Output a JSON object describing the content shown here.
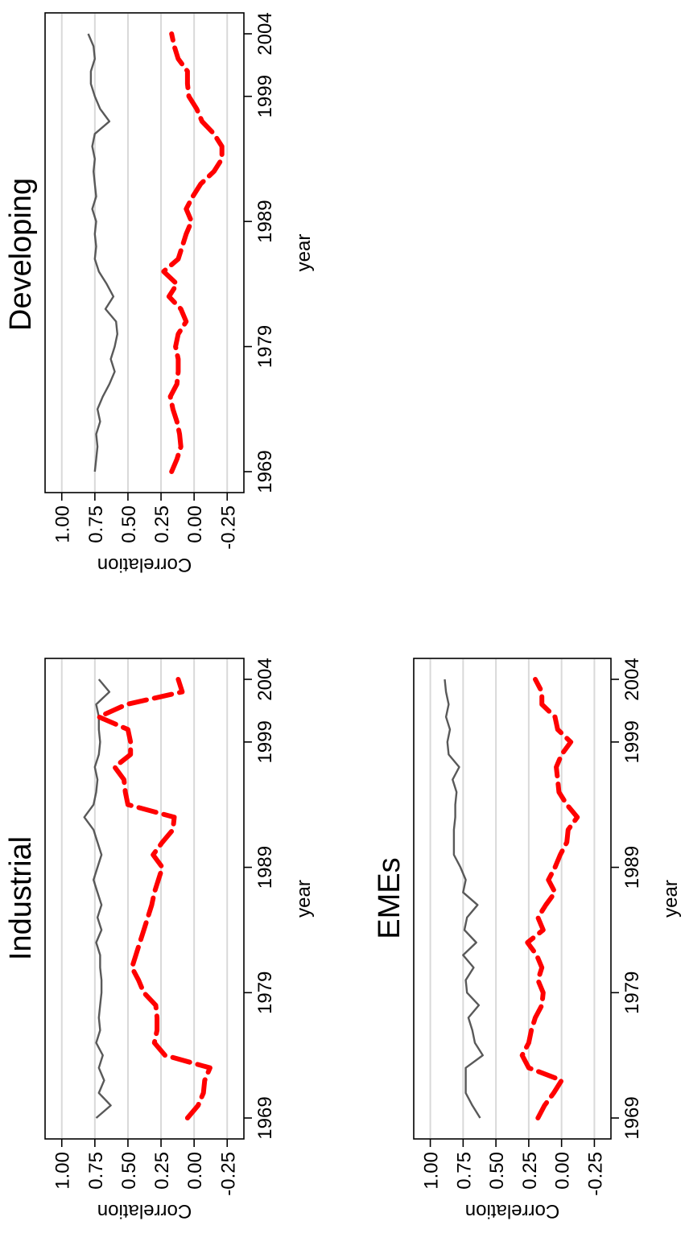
{
  "colors": {
    "solid": "#595959",
    "dashed": "#ff0000",
    "grid": "#d9d9d9"
  },
  "chart_data": [
    {
      "type": "line",
      "title": "Industrial",
      "xlabel": "year",
      "ylabel": "Correlation",
      "xlim": [
        1969,
        2004
      ],
      "ylim": [
        -0.25,
        1.0
      ],
      "xticks": [
        "1969",
        "1979",
        "1989",
        "1999",
        "2004"
      ],
      "yticks": [
        "1.00",
        "0.75",
        "0.50",
        "0.25",
        "0.00",
        "-0.25"
      ],
      "grid": true,
      "x": [
        1969,
        1970,
        1971,
        1972,
        1973,
        1974,
        1975,
        1976,
        1977,
        1978,
        1979,
        1980,
        1981,
        1982,
        1983,
        1984,
        1985,
        1986,
        1987,
        1988,
        1989,
        1990,
        1991,
        1992,
        1993,
        1994,
        1995,
        1996,
        1997,
        1998,
        1999,
        2000,
        2001,
        2002,
        2003,
        2004
      ],
      "series": [
        {
          "style": "solid",
          "values": [
            0.74,
            0.63,
            0.72,
            0.68,
            0.72,
            0.69,
            0.74,
            0.71,
            0.72,
            0.71,
            0.7,
            0.7,
            0.71,
            0.71,
            0.74,
            0.7,
            0.73,
            0.7,
            0.73,
            0.76,
            0.73,
            0.7,
            0.73,
            0.76,
            0.83,
            0.76,
            0.74,
            0.73,
            0.75,
            0.72,
            0.71,
            0.72,
            0.72,
            0.74,
            0.64,
            0.72
          ]
        },
        {
          "style": "dashed",
          "values": [
            0.05,
            -0.03,
            -0.07,
            -0.08,
            -0.12,
            0.22,
            0.3,
            0.28,
            0.28,
            0.29,
            0.38,
            0.42,
            0.47,
            0.44,
            0.41,
            0.38,
            0.35,
            0.32,
            0.3,
            0.27,
            0.24,
            0.31,
            0.24,
            0.16,
            0.15,
            0.5,
            0.52,
            0.53,
            0.6,
            0.48,
            0.48,
            0.5,
            0.72,
            0.51,
            0.09,
            0.12
          ]
        }
      ]
    },
    {
      "type": "line",
      "title": "Developing",
      "xlabel": "year",
      "ylabel": "Correlation",
      "xlim": [
        1969,
        2004
      ],
      "ylim": [
        -0.25,
        1.0
      ],
      "xticks": [
        "1969",
        "1979",
        "1989",
        "1999",
        "2004"
      ],
      "yticks": [
        "1.00",
        "0.75",
        "0.50",
        "0.25",
        "0.00",
        "-0.25"
      ],
      "grid": true,
      "x": [
        1969,
        1970,
        1971,
        1972,
        1973,
        1974,
        1975,
        1976,
        1977,
        1978,
        1979,
        1980,
        1981,
        1982,
        1983,
        1984,
        1985,
        1986,
        1987,
        1988,
        1989,
        1990,
        1991,
        1992,
        1993,
        1994,
        1995,
        1996,
        1997,
        1998,
        1999,
        2000,
        2001,
        2002,
        2003,
        2004
      ],
      "series": [
        {
          "style": "solid",
          "values": [
            0.75,
            0.74,
            0.73,
            0.74,
            0.71,
            0.73,
            0.69,
            0.64,
            0.6,
            0.63,
            0.6,
            0.58,
            0.59,
            0.67,
            0.61,
            0.66,
            0.72,
            0.75,
            0.74,
            0.75,
            0.74,
            0.77,
            0.74,
            0.75,
            0.76,
            0.75,
            0.77,
            0.75,
            0.64,
            0.71,
            0.75,
            0.78,
            0.78,
            0.75,
            0.76,
            0.8
          ]
        },
        {
          "style": "dashed",
          "values": [
            0.17,
            0.13,
            0.1,
            0.11,
            0.13,
            0.16,
            0.18,
            0.13,
            0.12,
            0.12,
            0.14,
            0.12,
            0.06,
            0.1,
            0.19,
            0.13,
            0.23,
            0.12,
            0.09,
            0.06,
            0.02,
            0.06,
            0.01,
            -0.05,
            -0.15,
            -0.21,
            -0.21,
            -0.15,
            -0.06,
            -0.02,
            0.04,
            0.05,
            0.05,
            0.12,
            0.15,
            0.17
          ]
        }
      ]
    },
    {
      "type": "line",
      "title": "EMEs",
      "xlabel": "year",
      "ylabel": "Correlation",
      "xlim": [
        1969,
        2004
      ],
      "ylim": [
        -0.25,
        1.0
      ],
      "xticks": [
        "1969",
        "1979",
        "1989",
        "1999",
        "2004"
      ],
      "yticks": [
        "1.00",
        "0.75",
        "0.50",
        "0.25",
        "0.00",
        "-0.25"
      ],
      "grid": true,
      "x": [
        1969,
        1970,
        1971,
        1972,
        1973,
        1974,
        1975,
        1976,
        1977,
        1978,
        1979,
        1980,
        1981,
        1982,
        1983,
        1984,
        1985,
        1986,
        1987,
        1988,
        1989,
        1990,
        1991,
        1992,
        1993,
        1994,
        1995,
        1996,
        1997,
        1998,
        1999,
        2000,
        2001,
        2002,
        2003,
        2004
      ],
      "series": [
        {
          "style": "solid",
          "values": [
            0.62,
            0.68,
            0.73,
            0.73,
            0.73,
            0.6,
            0.66,
            0.68,
            0.71,
            0.63,
            0.72,
            0.73,
            0.67,
            0.75,
            0.65,
            0.74,
            0.72,
            0.64,
            0.75,
            0.73,
            0.77,
            0.82,
            0.82,
            0.82,
            0.81,
            0.81,
            0.8,
            0.83,
            0.78,
            0.86,
            0.87,
            0.85,
            0.88,
            0.86,
            0.88,
            0.89
          ]
        },
        {
          "style": "dashed",
          "values": [
            0.18,
            0.13,
            0.06,
            0.0,
            0.25,
            0.3,
            0.25,
            0.23,
            0.2,
            0.15,
            0.14,
            0.18,
            0.15,
            0.19,
            0.26,
            0.14,
            0.18,
            0.12,
            0.05,
            0.1,
            0.05,
            0.01,
            -0.04,
            -0.05,
            -0.12,
            -0.04,
            0.02,
            0.03,
            0.04,
            0.0,
            -0.07,
            0.03,
            0.05,
            0.15,
            0.15,
            0.2
          ]
        }
      ]
    }
  ]
}
